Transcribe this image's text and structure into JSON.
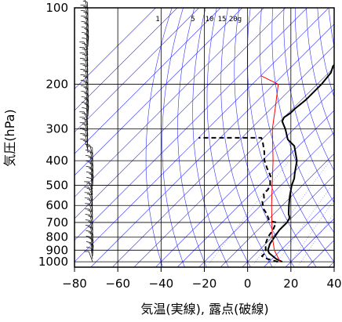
{
  "chart_data": {
    "type": "line",
    "subtype": "skew-T log-P diagram",
    "xlabel": "気温(実線), 露点(破線)",
    "ylabel": "気圧(hPa)",
    "xlim": [
      -80,
      40
    ],
    "ylim": [
      1050,
      100
    ],
    "y_scale": "log",
    "x_ticks": [
      -80,
      -60,
      -40,
      -20,
      0,
      20,
      40
    ],
    "x_tick_labels": [
      "−80",
      "−60",
      "−40",
      "−20",
      "0",
      "20",
      "40"
    ],
    "y_ticks": [
      100,
      200,
      300,
      400,
      500,
      600,
      700,
      800,
      900,
      1000
    ],
    "y_tick_labels": [
      "100",
      "200",
      "300",
      "400",
      "500",
      "600",
      "700",
      "800",
      "900",
      "1000"
    ],
    "mixing_ratio_labels": [
      "1",
      "5",
      "10",
      "15",
      "20g"
    ],
    "colors": {
      "temperature": "#000000",
      "dewpoint": "#000000",
      "parcel": "#ff0000",
      "background_lines": "#3030ff",
      "grid": "#000000",
      "wind_barbs": "#000000"
    },
    "series": [
      {
        "name": "気温",
        "style": "solid",
        "points": [
          {
            "p": 1000,
            "t": 16
          },
          {
            "p": 975,
            "t": 12
          },
          {
            "p": 950,
            "t": 9
          },
          {
            "p": 925,
            "t": 6
          },
          {
            "p": 900,
            "t": 4
          },
          {
            "p": 850,
            "t": 2
          },
          {
            "p": 800,
            "t": 1
          },
          {
            "p": 750,
            "t": 0
          },
          {
            "p": 700,
            "t": 0
          },
          {
            "p": 670,
            "t": -1
          },
          {
            "p": 650,
            "t": -3
          },
          {
            "p": 600,
            "t": -7
          },
          {
            "p": 550,
            "t": -11
          },
          {
            "p": 500,
            "t": -15
          },
          {
            "p": 470,
            "t": -17
          },
          {
            "p": 450,
            "t": -19
          },
          {
            "p": 400,
            "t": -24
          },
          {
            "p": 350,
            "t": -32
          },
          {
            "p": 330,
            "t": -38
          },
          {
            "p": 300,
            "t": -44
          },
          {
            "p": 280,
            "t": -49
          },
          {
            "p": 270,
            "t": -50
          },
          {
            "p": 260,
            "t": -49
          },
          {
            "p": 250,
            "t": -49
          },
          {
            "p": 230,
            "t": -48
          },
          {
            "p": 200,
            "t": -48
          },
          {
            "p": 180,
            "t": -49
          },
          {
            "p": 170,
            "t": -51
          },
          {
            "p": 150,
            "t": -52
          },
          {
            "p": 130,
            "t": -54
          },
          {
            "p": 115,
            "t": -56
          },
          {
            "p": 100,
            "t": -57
          }
        ]
      },
      {
        "name": "露点",
        "style": "dashed",
        "points": [
          {
            "p": 1000,
            "t": 14
          },
          {
            "p": 975,
            "t": 8
          },
          {
            "p": 950,
            "t": 4
          },
          {
            "p": 925,
            "t": 4
          },
          {
            "p": 900,
            "t": 3
          },
          {
            "p": 850,
            "t": 0
          },
          {
            "p": 800,
            "t": -2
          },
          {
            "p": 750,
            "t": -3
          },
          {
            "p": 700,
            "t": -5
          },
          {
            "p": 690,
            "t": -9
          },
          {
            "p": 650,
            "t": -13
          },
          {
            "p": 620,
            "t": -17
          },
          {
            "p": 580,
            "t": -21
          },
          {
            "p": 560,
            "t": -22
          },
          {
            "p": 540,
            "t": -24
          },
          {
            "p": 520,
            "t": -24
          },
          {
            "p": 500,
            "t": -25
          },
          {
            "p": 480,
            "t": -27
          },
          {
            "p": 460,
            "t": -29
          },
          {
            "p": 430,
            "t": -34
          },
          {
            "p": 400,
            "t": -39
          },
          {
            "p": 370,
            "t": -43
          },
          {
            "p": 340,
            "t": -48
          },
          {
            "p": 325,
            "t": -51
          },
          {
            "p": 325,
            "t": -80
          }
        ]
      },
      {
        "name": "",
        "style": "solid",
        "color": "#ff0000",
        "points": [
          {
            "p": 1000,
            "t": 15
          },
          {
            "p": 900,
            "t": 7
          },
          {
            "p": 800,
            "t": 0
          },
          {
            "p": 700,
            "t": -7
          },
          {
            "p": 600,
            "t": -15
          },
          {
            "p": 500,
            "t": -24
          },
          {
            "p": 400,
            "t": -35
          },
          {
            "p": 300,
            "t": -50
          },
          {
            "p": 250,
            "t": -58
          },
          {
            "p": 200,
            "t": -68
          },
          {
            "p": 185,
            "t": -80
          }
        ]
      }
    ],
    "wind_profile_note": "wind barbs along the left margin from 1000 to 100 hPa"
  }
}
